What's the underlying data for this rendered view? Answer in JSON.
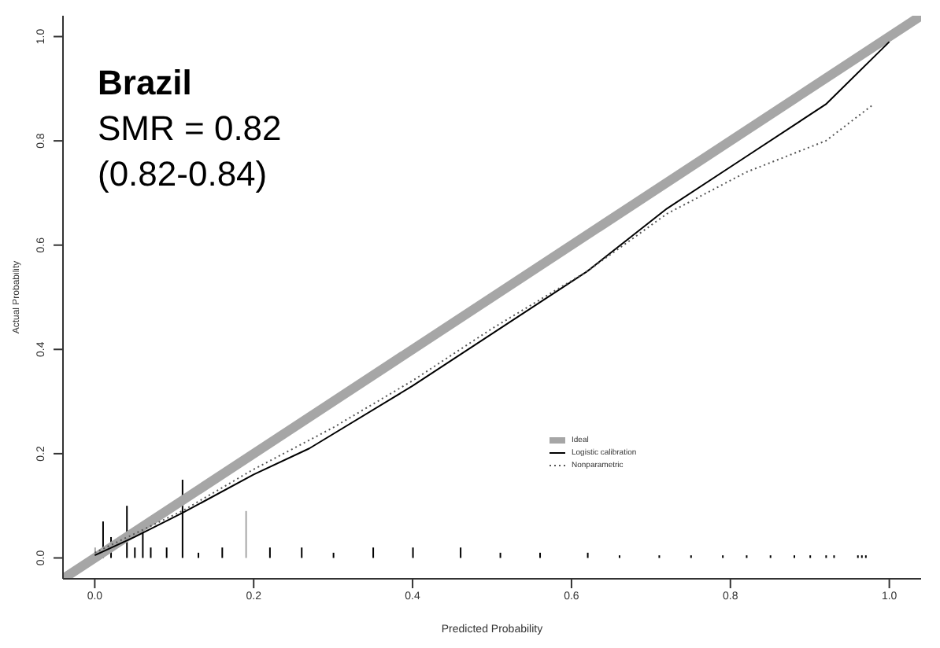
{
  "chart_data": {
    "type": "line",
    "xlabel": "Predicted Probability",
    "ylabel": "Actual Probability",
    "annotations": [
      "Brazil",
      "SMR = 0.82",
      "(0.82-0.84)"
    ],
    "xlim": [
      -0.04,
      1.04
    ],
    "ylim": [
      -0.04,
      1.04
    ],
    "xticks": [
      {
        "value": 0,
        "label": "0.0"
      },
      0.2,
      0.4,
      0.6,
      0.8,
      {
        "value": 1,
        "label": "1.0"
      }
    ],
    "yticks": [
      {
        "value": 0,
        "label": "0.0"
      },
      0.2,
      0.4,
      0.6,
      0.8,
      {
        "value": 1,
        "label": "1.0"
      }
    ],
    "legend": "bottom right",
    "grid": false,
    "series": [
      {
        "name": "Ideal",
        "color": "#a6a6a6",
        "line_style": "solid",
        "x": [
          -0.04,
          1.04
        ],
        "values": [
          -0.04,
          1.04
        ]
      },
      {
        "name": "Logistic calibration",
        "color": "#000000",
        "line_style": "solid",
        "x": [
          0,
          0.05,
          0.11,
          0.2,
          0.27,
          0.4,
          0.5,
          0.62,
          0.72,
          0.82,
          0.92,
          1.0
        ],
        "values": [
          0.005,
          0.04,
          0.086,
          0.16,
          0.21,
          0.33,
          0.43,
          0.55,
          0.67,
          0.77,
          0.87,
          0.99
        ]
      },
      {
        "name": "Nonparametric",
        "color": "#555555",
        "line_style": "dotted",
        "x": [
          0,
          0.11,
          0.2,
          0.3,
          0.4,
          0.5,
          0.62,
          0.72,
          0.82,
          0.92,
          0.98
        ],
        "values": [
          0.01,
          0.09,
          0.17,
          0.25,
          0.34,
          0.44,
          0.55,
          0.66,
          0.74,
          0.8,
          0.87
        ]
      },
      {
        "type": "bar",
        "x": [
          0.0,
          0.01,
          0.02,
          0.04,
          0.05,
          0.06,
          0.07,
          0.09,
          0.11,
          0.13,
          0.16,
          0.19,
          0.22,
          0.26,
          0.3,
          0.35,
          0.4,
          0.46,
          0.51,
          0.56,
          0.62,
          0.66,
          0.71,
          0.75,
          0.79,
          0.82,
          0.85,
          0.88,
          0.9,
          0.92,
          0.93,
          0.96,
          0.965,
          0.97
        ],
        "values": [
          0.02,
          0.07,
          0.04,
          0.1,
          0.02,
          0.06,
          0.02,
          0.02,
          0.15,
          0.01,
          0.02,
          0.09,
          0.02,
          0.02,
          0.01,
          0.02,
          0.02,
          0.02,
          0.01,
          0.01,
          0.01,
          0.005,
          0.005,
          0.005,
          0.005,
          0.005,
          0.005,
          0.005,
          0.005,
          0.005,
          0.005,
          0.005,
          0.005,
          0.005
        ],
        "colors": [
          "#a6a6a6",
          "#000000",
          "#000000",
          "#000000",
          "#000000",
          "#000000",
          "#000000",
          "#000000",
          "#000000",
          "#000000",
          "#000000",
          "#a6a6a6",
          "#000000",
          "#000000",
          "#000000",
          "#000000",
          "#000000",
          "#000000",
          "#000000",
          "#000000",
          "#000000",
          "#000000",
          "#000000",
          "#000000",
          "#000000",
          "#000000",
          "#000000",
          "#000000",
          "#000000",
          "#000000",
          "#000000",
          "#000000",
          "#000000",
          "#000000"
        ]
      }
    ]
  }
}
